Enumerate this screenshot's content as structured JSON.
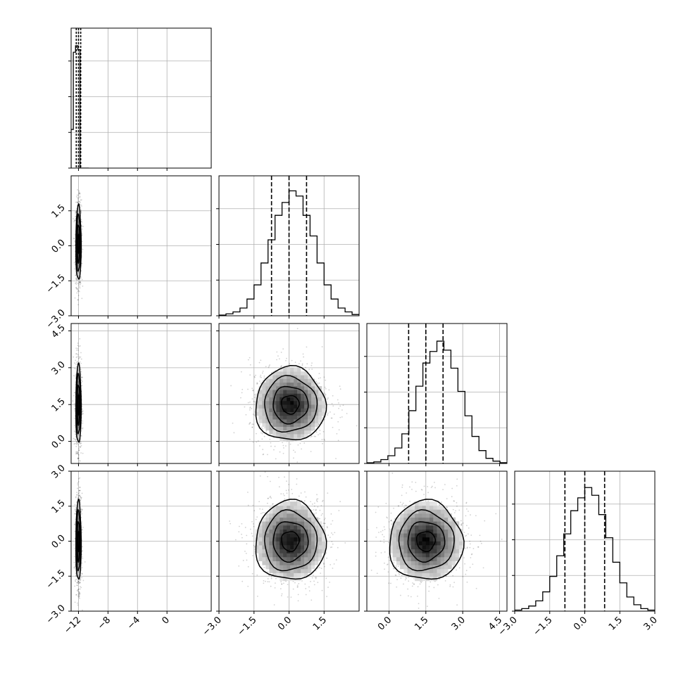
{
  "chart_data": {
    "type": "corner",
    "grid": true,
    "variables": [
      {
        "range": [
          -13.0,
          6.0
        ],
        "ticks": [
          -12,
          -8,
          -4,
          0
        ],
        "tick_labels": [
          "−12",
          "−8",
          "−4",
          "0"
        ],
        "quantiles": [
          -12.3,
          -12.0,
          -11.7
        ],
        "hist_bins": [
          -13.0,
          -12.7,
          -12.4,
          -12.1,
          -11.8,
          -11.5,
          -11.2,
          -10.9,
          -10.6
        ],
        "hist_counts": [
          0.3,
          0.9,
          0.95,
          0.92,
          0.0,
          0.0,
          0.0,
          0.0
        ]
      },
      {
        "range": [
          -3.0,
          3.0
        ],
        "ticks": [
          -3.0,
          -1.5,
          0.0,
          1.5
        ],
        "tick_labels": [
          "−3.0",
          "−1.5",
          "0.0",
          "1.5"
        ],
        "quantiles": [
          -0.75,
          0.0,
          0.75
        ],
        "hist_edges_range": [
          -3.0,
          3.0
        ],
        "hist_counts": [
          0.005,
          0.015,
          0.03,
          0.06,
          0.13,
          0.24,
          0.41,
          0.59,
          0.78,
          0.88,
          0.97,
          0.93,
          0.78,
          0.62,
          0.41,
          0.24,
          0.13,
          0.06,
          0.03,
          0.01
        ]
      },
      {
        "range": [
          -0.9,
          4.8
        ],
        "ticks": [
          0.0,
          1.5,
          3.0,
          4.5
        ],
        "tick_labels": [
          "0.0",
          "1.5",
          "3.0",
          "4.5"
        ],
        "quantiles": [
          0.8,
          1.5,
          2.2
        ],
        "hist_edges_range": [
          -0.9,
          4.8
        ],
        "hist_counts": [
          0.005,
          0.012,
          0.03,
          0.06,
          0.12,
          0.23,
          0.41,
          0.6,
          0.78,
          0.87,
          0.95,
          0.88,
          0.74,
          0.56,
          0.37,
          0.21,
          0.1,
          0.04,
          0.018,
          0.006
        ]
      },
      {
        "range": [
          -3.0,
          3.0
        ],
        "ticks": [
          -3.0,
          -1.5,
          0.0,
          1.5,
          3.0
        ],
        "tick_labels": [
          "−3.0",
          "−1.5",
          "0.0",
          "1.5",
          "3.0"
        ],
        "quantiles": [
          -0.85,
          0.0,
          0.85
        ],
        "hist_edges_range": [
          -3.0,
          3.0
        ],
        "hist_counts": [
          0.008,
          0.02,
          0.04,
          0.08,
          0.15,
          0.27,
          0.43,
          0.6,
          0.78,
          0.88,
          0.96,
          0.9,
          0.75,
          0.57,
          0.38,
          0.22,
          0.11,
          0.05,
          0.02,
          0.008
        ]
      }
    ],
    "joint": [
      {
        "row": 1,
        "col": 0,
        "center": [
          -12.0,
          0.1
        ],
        "sigma": [
          0.18,
          0.8
        ],
        "contour_levels": [
          0.5,
          1.0,
          1.5,
          2.0
        ]
      },
      {
        "row": 2,
        "col": 0,
        "center": [
          -12.0,
          1.5
        ],
        "sigma": [
          0.18,
          0.8
        ],
        "contour_levels": [
          0.5,
          1.0,
          1.5,
          2.0
        ]
      },
      {
        "row": 3,
        "col": 0,
        "center": [
          -12.0,
          0.0
        ],
        "sigma": [
          0.18,
          0.85
        ],
        "contour_levels": [
          0.5,
          1.0,
          1.5,
          2.0
        ]
      },
      {
        "row": 2,
        "col": 1,
        "center": [
          0.05,
          1.5
        ],
        "sigma": [
          0.75,
          0.75
        ],
        "contour_levels": [
          0.5,
          1.0,
          1.5,
          2.0
        ]
      },
      {
        "row": 3,
        "col": 1,
        "center": [
          0.05,
          0.0
        ],
        "sigma": [
          0.75,
          0.85
        ],
        "contour_levels": [
          0.5,
          1.0,
          1.5,
          2.0
        ]
      },
      {
        "row": 3,
        "col": 2,
        "center": [
          1.5,
          0.0
        ],
        "sigma": [
          0.75,
          0.85
        ],
        "contour_levels": [
          0.5,
          1.0,
          1.5,
          2.0
        ]
      }
    ],
    "colors": {
      "line": "#000000",
      "grid": "#b0b0b0",
      "points": "#000000"
    }
  }
}
